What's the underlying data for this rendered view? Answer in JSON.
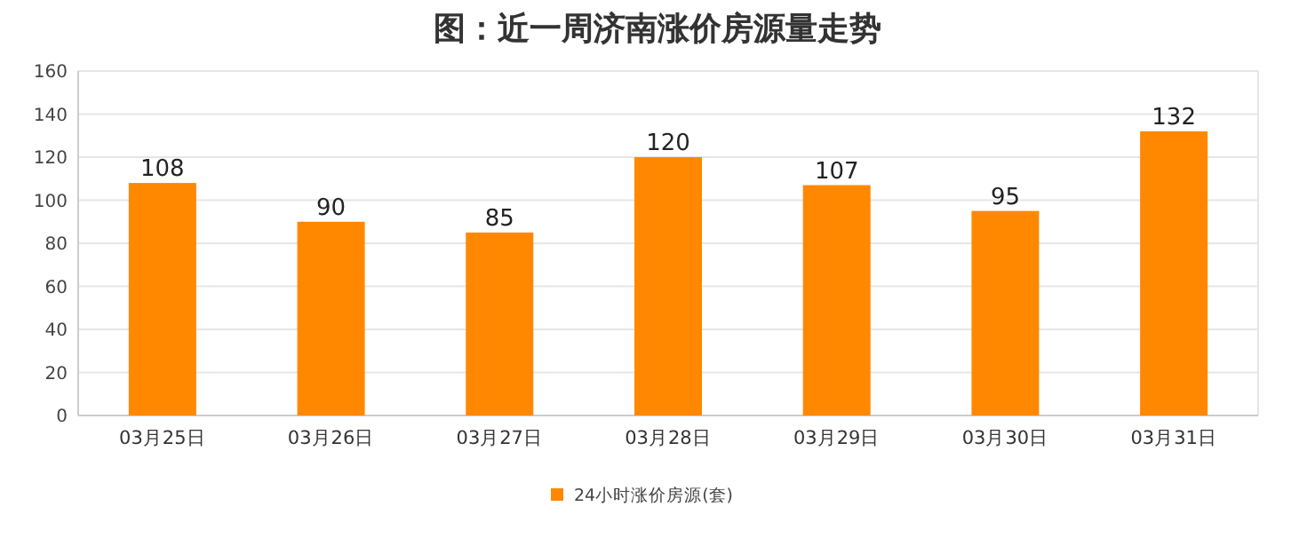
{
  "chart_data": {
    "type": "bar",
    "title": "图：近一周济南涨价房源量走势",
    "categories": [
      "03月25日",
      "03月26日",
      "03月27日",
      "03月28日",
      "03月29日",
      "03月30日",
      "03月31日"
    ],
    "series": [
      {
        "name": "24小时涨价房源(套)",
        "color": "#ff8800",
        "values": [
          108,
          90,
          85,
          120,
          107,
          95,
          132
        ]
      }
    ],
    "ylim": [
      0,
      160
    ],
    "yticks": [
      0,
      20,
      40,
      60,
      80,
      100,
      120,
      140,
      160
    ],
    "grid": "y",
    "legend": "bottom",
    "data_labels": true
  }
}
